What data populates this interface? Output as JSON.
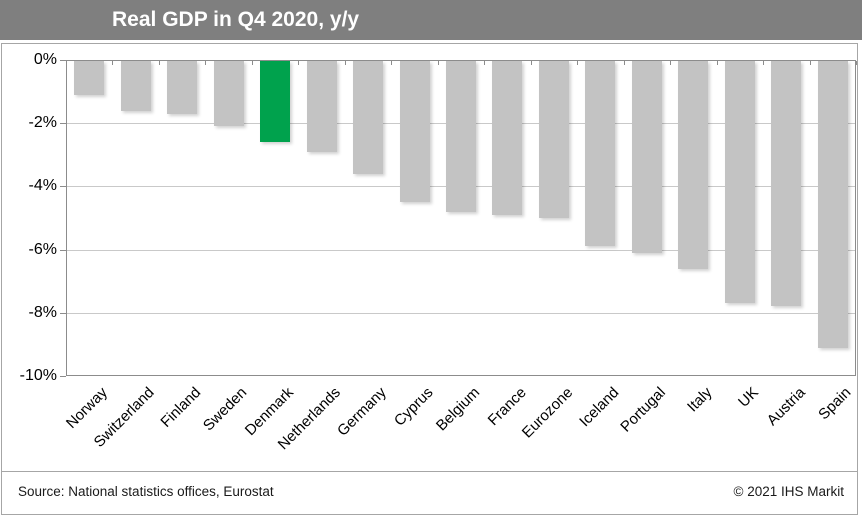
{
  "title": "Real GDP in Q4 2020, y/y",
  "footer": {
    "source": "Source: National statistics offices, Eurostat",
    "copyright": "© 2021 IHS Markit"
  },
  "colors": {
    "banner_bg": "#7F7F7F",
    "title_text": "#FFFFFF",
    "bar_default": "#C3C3C3",
    "bar_highlight": "#00A24D",
    "gridline": "#C9C9C9",
    "axis": "#8C8C8C",
    "label_text": "#000000"
  },
  "chart_data": {
    "type": "bar",
    "title": "Real GDP in Q4 2020, y/y",
    "categories": [
      "Norway",
      "Switzerland",
      "Finland",
      "Sweden",
      "Denmark",
      "Netherlands",
      "Germany",
      "Cyprus",
      "Belgium",
      "France",
      "Eurozone",
      "Iceland",
      "Portugal",
      "Italy",
      "UK",
      "Austria",
      "Spain"
    ],
    "values": [
      -1.1,
      -1.6,
      -1.7,
      -2.1,
      -2.6,
      -2.9,
      -3.6,
      -4.5,
      -4.8,
      -4.9,
      -5.0,
      -5.9,
      -6.1,
      -6.6,
      -7.7,
      -7.8,
      -9.1
    ],
    "unit": "%",
    "highlight_category": "Denmark",
    "xlabel": "",
    "ylabel": "",
    "y_axis": {
      "min": -10,
      "max": 0,
      "tick_step": 2,
      "tick_labels": [
        "0%",
        "-2%",
        "-4%",
        "-6%",
        "-8%",
        "-10%"
      ]
    },
    "grid": true,
    "legend": false
  }
}
